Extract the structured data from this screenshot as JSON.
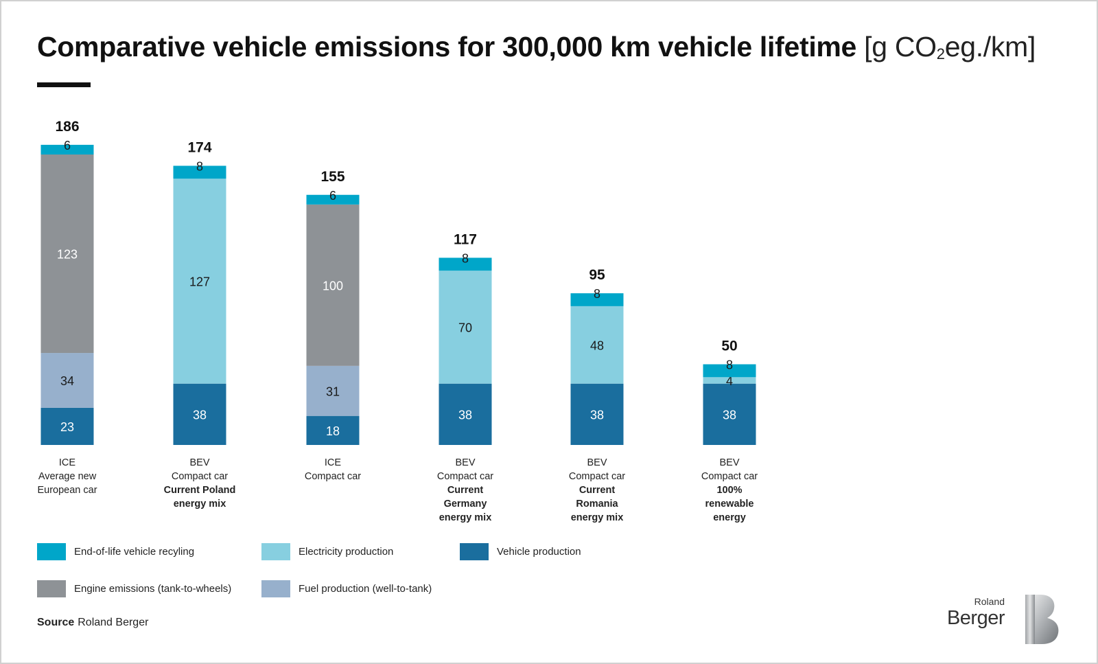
{
  "title": {
    "main": "Comparative vehicle emissions for 300,000 km vehicle lifetime",
    "unit_prefix": "[g CO",
    "unit_sub": "2",
    "unit_suffix": "eg./km]"
  },
  "colors": {
    "end_of_life": "#00a6c9",
    "electricity": "#87cfe0",
    "vehicle_production": "#1a6e9e",
    "engine_emissions": "#8e9296",
    "fuel_production": "#97b0cc"
  },
  "chart_data": {
    "type": "bar",
    "stacked": true,
    "ylim": [
      0,
      186
    ],
    "grid": false,
    "legend_position": "bottom-left",
    "categories": [
      {
        "line1": "ICE",
        "line2": "Average new",
        "line3": "European car",
        "line3_bold": false,
        "line4": "",
        "line5": ""
      },
      {
        "line1": "BEV",
        "line2": "Compact car",
        "line3": "Current Poland",
        "line3_bold": true,
        "line4": "energy mix",
        "line5": ""
      },
      {
        "line1": "ICE",
        "line2": "Compact car",
        "line3": "",
        "line3_bold": false,
        "line4": "",
        "line5": ""
      },
      {
        "line1": "BEV",
        "line2": "Compact car",
        "line3": "Current",
        "line3_bold": true,
        "line4": "Germany",
        "line5": "energy mix"
      },
      {
        "line1": "BEV",
        "line2": "Compact car",
        "line3": "Current",
        "line3_bold": true,
        "line4": "Romania",
        "line5": "energy mix"
      },
      {
        "line1": "BEV",
        "line2": "Compact car",
        "line3": "100%",
        "line3_bold": true,
        "line4": "renewable",
        "line5": "energy"
      }
    ],
    "totals": [
      186,
      174,
      155,
      117,
      95,
      50
    ],
    "series": [
      {
        "name": "Vehicle production",
        "key": "vehicle_production",
        "values": [
          23,
          38,
          18,
          38,
          38,
          38
        ]
      },
      {
        "name": "Fuel production (well-to-tank)",
        "key": "fuel_production",
        "values": [
          34,
          0,
          31,
          0,
          0,
          0
        ]
      },
      {
        "name": "Engine emissions (tank-to-wheels)",
        "key": "engine_emissions",
        "values": [
          123,
          0,
          100,
          0,
          0,
          0
        ]
      },
      {
        "name": "Electricity production",
        "key": "electricity",
        "values": [
          0,
          127,
          0,
          70,
          48,
          4
        ]
      },
      {
        "name": "End-of-life vehicle recyling",
        "key": "end_of_life",
        "values": [
          6,
          8,
          6,
          8,
          8,
          8
        ]
      }
    ]
  },
  "legend": [
    {
      "label": "End-of-life vehicle recyling",
      "key": "end_of_life"
    },
    {
      "label": "Electricity production",
      "key": "electricity"
    },
    {
      "label": "Vehicle production",
      "key": "vehicle_production"
    },
    {
      "label": "Engine emissions (tank-to-wheels)",
      "key": "engine_emissions"
    },
    {
      "label": "Fuel production (well-to-tank)",
      "key": "fuel_production"
    }
  ],
  "source": {
    "label": "Source",
    "text": "Roland Berger"
  },
  "logo": {
    "line1": "Roland",
    "line2": "Berger"
  }
}
